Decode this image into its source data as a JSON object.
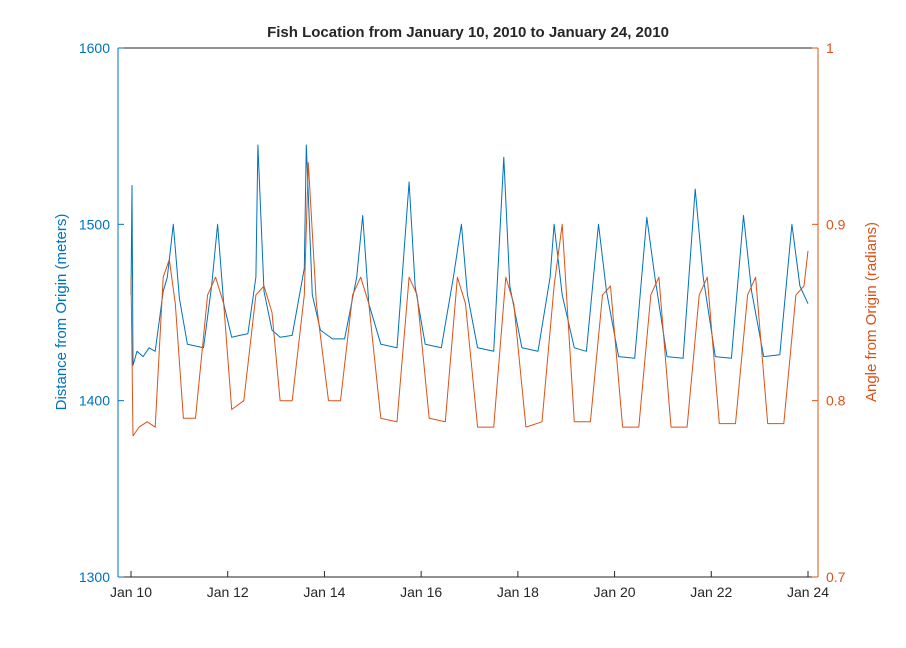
{
  "chart_data": {
    "type": "line",
    "title": "Fish Location from January 10, 2010 to January 24, 2010",
    "x_axis": {
      "type": "date",
      "range": [
        "2010-01-10",
        "2010-01-24"
      ],
      "tick_labels": [
        "Jan 10",
        "Jan 12",
        "Jan 14",
        "Jan 16",
        "Jan 18",
        "Jan 20",
        "Jan 22",
        "Jan 24"
      ]
    },
    "y_left": {
      "label": "Distance from Origin (meters)",
      "range": [
        1300,
        1600
      ],
      "tick_labels": [
        "1300",
        "1400",
        "1500",
        "1600"
      ],
      "color": "#0072BD"
    },
    "y_right": {
      "label": "Angle from Origin (radians)",
      "range": [
        0.7,
        1.0
      ],
      "tick_labels": [
        "0.7",
        "0.8",
        "0.9",
        "1"
      ],
      "color": "#D95319"
    },
    "grid": false,
    "series": [
      {
        "axis": "left",
        "color": "#0072BD",
        "points": [
          [
            "2010-01-10T00:00",
            1460
          ],
          [
            "2010-01-10T00:30",
            1522
          ],
          [
            "2010-01-10T01:00",
            1420
          ],
          [
            "2010-01-10T03:00",
            1428
          ],
          [
            "2010-01-10T06:00",
            1425
          ],
          [
            "2010-01-10T09:00",
            1430
          ],
          [
            "2010-01-10T12:00",
            1428
          ],
          [
            "2010-01-10T16:00",
            1462
          ],
          [
            "2010-01-10T18:00",
            1470
          ],
          [
            "2010-01-10T21:00",
            1500
          ],
          [
            "2010-01-11T00:00",
            1458
          ],
          [
            "2010-01-11T04:00",
            1432
          ],
          [
            "2010-01-11T08:00",
            1431
          ],
          [
            "2010-01-11T12:00",
            1430
          ],
          [
            "2010-01-11T16:00",
            1465
          ],
          [
            "2010-01-11T19:00",
            1500
          ],
          [
            "2010-01-11T22:00",
            1455
          ],
          [
            "2010-01-12T02:00",
            1436
          ],
          [
            "2010-01-12T06:00",
            1437
          ],
          [
            "2010-01-12T10:00",
            1438
          ],
          [
            "2010-01-12T14:00",
            1470
          ],
          [
            "2010-01-12T15:00",
            1545
          ],
          [
            "2010-01-12T18:00",
            1462
          ],
          [
            "2010-01-12T22:00",
            1440
          ],
          [
            "2010-01-13T02:00",
            1436
          ],
          [
            "2010-01-13T08:00",
            1437
          ],
          [
            "2010-01-13T14:00",
            1475
          ],
          [
            "2010-01-13T15:00",
            1545
          ],
          [
            "2010-01-13T18:00",
            1460
          ],
          [
            "2010-01-13T22:00",
            1440
          ],
          [
            "2010-01-14T04:00",
            1435
          ],
          [
            "2010-01-14T10:00",
            1435
          ],
          [
            "2010-01-14T16:00",
            1470
          ],
          [
            "2010-01-14T19:00",
            1505
          ],
          [
            "2010-01-14T22:00",
            1455
          ],
          [
            "2010-01-15T04:00",
            1432
          ],
          [
            "2010-01-15T12:00",
            1430
          ],
          [
            "2010-01-15T18:00",
            1524
          ],
          [
            "2010-01-15T21:00",
            1465
          ],
          [
            "2010-01-16T02:00",
            1432
          ],
          [
            "2010-01-16T10:00",
            1430
          ],
          [
            "2010-01-16T16:00",
            1470
          ],
          [
            "2010-01-16T20:00",
            1500
          ],
          [
            "2010-01-16T23:00",
            1460
          ],
          [
            "2010-01-17T04:00",
            1430
          ],
          [
            "2010-01-17T12:00",
            1428
          ],
          [
            "2010-01-17T17:00",
            1538
          ],
          [
            "2010-01-17T20:00",
            1465
          ],
          [
            "2010-01-18T02:00",
            1430
          ],
          [
            "2010-01-18T10:00",
            1428
          ],
          [
            "2010-01-18T16:00",
            1470
          ],
          [
            "2010-01-18T18:00",
            1500
          ],
          [
            "2010-01-18T22:00",
            1460
          ],
          [
            "2010-01-19T04:00",
            1430
          ],
          [
            "2010-01-19T10:00",
            1428
          ],
          [
            "2010-01-19T16:00",
            1500
          ],
          [
            "2010-01-19T20:00",
            1462
          ],
          [
            "2010-01-20T02:00",
            1425
          ],
          [
            "2010-01-20T10:00",
            1424
          ],
          [
            "2010-01-20T16:00",
            1504
          ],
          [
            "2010-01-20T20:00",
            1470
          ],
          [
            "2010-01-21T02:00",
            1425
          ],
          [
            "2010-01-21T10:00",
            1424
          ],
          [
            "2010-01-21T16:00",
            1520
          ],
          [
            "2010-01-21T20:00",
            1470
          ],
          [
            "2010-01-22T02:00",
            1425
          ],
          [
            "2010-01-22T10:00",
            1424
          ],
          [
            "2010-01-22T16:00",
            1505
          ],
          [
            "2010-01-22T20:00",
            1462
          ],
          [
            "2010-01-23T02:00",
            1425
          ],
          [
            "2010-01-23T10:00",
            1426
          ],
          [
            "2010-01-23T16:00",
            1500
          ],
          [
            "2010-01-23T20:00",
            1465
          ],
          [
            "2010-01-24T00:00",
            1455
          ]
        ]
      },
      {
        "axis": "right",
        "color": "#D95319",
        "points": [
          [
            "2010-01-10T00:00",
            0.87
          ],
          [
            "2010-01-10T01:00",
            0.78
          ],
          [
            "2010-01-10T04:00",
            0.785
          ],
          [
            "2010-01-10T08:00",
            0.788
          ],
          [
            "2010-01-10T12:00",
            0.785
          ],
          [
            "2010-01-10T16:00",
            0.87
          ],
          [
            "2010-01-10T19:00",
            0.88
          ],
          [
            "2010-01-10T22:00",
            0.855
          ],
          [
            "2010-01-11T02:00",
            0.79
          ],
          [
            "2010-01-11T08:00",
            0.79
          ],
          [
            "2010-01-11T14:00",
            0.86
          ],
          [
            "2010-01-11T18:00",
            0.87
          ],
          [
            "2010-01-11T22:00",
            0.855
          ],
          [
            "2010-01-12T02:00",
            0.795
          ],
          [
            "2010-01-12T08:00",
            0.8
          ],
          [
            "2010-01-12T14:00",
            0.86
          ],
          [
            "2010-01-12T18:00",
            0.865
          ],
          [
            "2010-01-12T22:00",
            0.85
          ],
          [
            "2010-01-13T02:00",
            0.8
          ],
          [
            "2010-01-13T08:00",
            0.8
          ],
          [
            "2010-01-13T14:00",
            0.86
          ],
          [
            "2010-01-13T16:00",
            0.935
          ],
          [
            "2010-01-13T20:00",
            0.855
          ],
          [
            "2010-01-14T02:00",
            0.8
          ],
          [
            "2010-01-14T08:00",
            0.8
          ],
          [
            "2010-01-14T14:00",
            0.86
          ],
          [
            "2010-01-14T18:00",
            0.87
          ],
          [
            "2010-01-14T22:00",
            0.855
          ],
          [
            "2010-01-15T04:00",
            0.79
          ],
          [
            "2010-01-15T12:00",
            0.788
          ],
          [
            "2010-01-15T18:00",
            0.87
          ],
          [
            "2010-01-15T22:00",
            0.86
          ],
          [
            "2010-01-16T04:00",
            0.79
          ],
          [
            "2010-01-16T12:00",
            0.788
          ],
          [
            "2010-01-16T18:00",
            0.87
          ],
          [
            "2010-01-16T22:00",
            0.855
          ],
          [
            "2010-01-17T04:00",
            0.785
          ],
          [
            "2010-01-17T12:00",
            0.785
          ],
          [
            "2010-01-17T18:00",
            0.87
          ],
          [
            "2010-01-17T22:00",
            0.855
          ],
          [
            "2010-01-18T04:00",
            0.785
          ],
          [
            "2010-01-18T12:00",
            0.788
          ],
          [
            "2010-01-18T18:00",
            0.865
          ],
          [
            "2010-01-18T22:00",
            0.9
          ],
          [
            "2010-01-19T04:00",
            0.788
          ],
          [
            "2010-01-19T12:00",
            0.788
          ],
          [
            "2010-01-19T18:00",
            0.86
          ],
          [
            "2010-01-19T22:00",
            0.865
          ],
          [
            "2010-01-20T04:00",
            0.785
          ],
          [
            "2010-01-20T12:00",
            0.785
          ],
          [
            "2010-01-20T18:00",
            0.86
          ],
          [
            "2010-01-20T22:00",
            0.87
          ],
          [
            "2010-01-21T04:00",
            0.785
          ],
          [
            "2010-01-21T12:00",
            0.785
          ],
          [
            "2010-01-21T18:00",
            0.86
          ],
          [
            "2010-01-21T22:00",
            0.87
          ],
          [
            "2010-01-22T04:00",
            0.787
          ],
          [
            "2010-01-22T12:00",
            0.787
          ],
          [
            "2010-01-22T18:00",
            0.86
          ],
          [
            "2010-01-22T22:00",
            0.87
          ],
          [
            "2010-01-23T04:00",
            0.787
          ],
          [
            "2010-01-23T12:00",
            0.787
          ],
          [
            "2010-01-23T18:00",
            0.86
          ],
          [
            "2010-01-23T22:00",
            0.865
          ],
          [
            "2010-01-24T00:00",
            0.885
          ]
        ]
      }
    ]
  }
}
